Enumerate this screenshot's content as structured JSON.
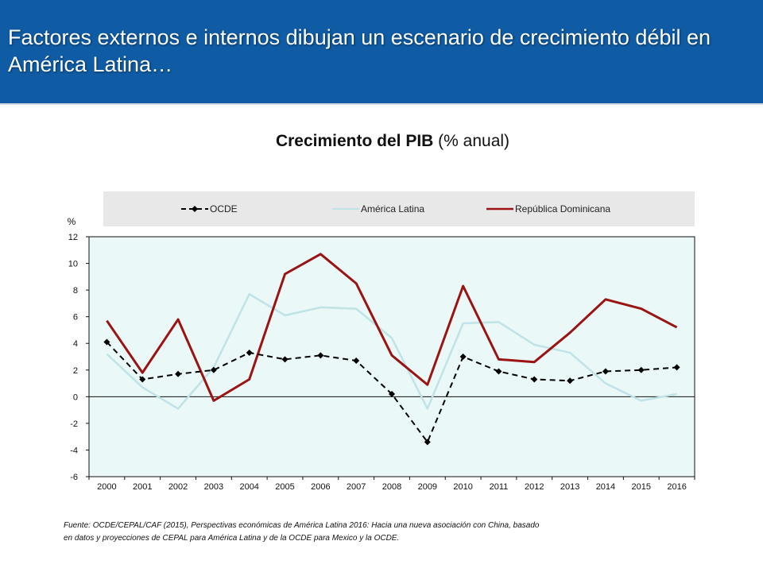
{
  "header": {
    "title": "Factores externos e internos dibujan un escenario de crecimiento débil en América Latina…"
  },
  "chart_title": {
    "bold": "Crecimiento del PIB",
    "rest": "(% anual)"
  },
  "source_note": [
    "Fuente: OCDE/CEPAL/CAF (2015), Perspectivas económicas de América Latina 2016: Hacia una nueva asociación con China, basado",
    "en datos y proyecciones de CEPAL para América Latina y de la OCDE para Mexico y la OCDE."
  ],
  "colors": {
    "header_bg": "#0f5ba4",
    "plot_bg": "#eaf8f8",
    "legend_bg": "#e8e8e8",
    "ocde": "#000000",
    "america_latina": "#bfe3e6",
    "republica_dominicana": "#9b1414"
  },
  "chart_data": {
    "type": "line",
    "title": "Crecimiento del PIB (% anual)",
    "ylabel": "%",
    "xlabel": "",
    "ylim": [
      -6,
      12
    ],
    "yticks": [
      12,
      10,
      8,
      6,
      4,
      2,
      0,
      -2,
      -4,
      -6
    ],
    "grid": false,
    "legend_position": "top",
    "x": [
      "2000",
      "2001",
      "2002",
      "2003",
      "2004",
      "2005",
      "2006",
      "2007",
      "2008",
      "2009",
      "2010",
      "2011",
      "2012",
      "2013",
      "2014",
      "2015",
      "2016"
    ],
    "series": [
      {
        "name": "OCDE",
        "style": "dashed-diamond",
        "values": [
          4.1,
          1.3,
          1.7,
          2.0,
          3.3,
          2.8,
          3.1,
          2.7,
          0.2,
          -3.4,
          3.0,
          1.9,
          1.3,
          1.2,
          1.9,
          2.0,
          2.2
        ]
      },
      {
        "name": "América Latina",
        "style": "solid",
        "values": [
          3.2,
          0.7,
          -0.9,
          2.2,
          7.7,
          6.1,
          6.7,
          6.6,
          4.4,
          -0.9,
          5.5,
          5.6,
          3.9,
          3.3,
          1.0,
          -0.3,
          0.2
        ]
      },
      {
        "name": "República Dominicana",
        "style": "solid-thick",
        "values": [
          5.7,
          1.8,
          5.8,
          -0.3,
          1.3,
          9.2,
          10.7,
          8.5,
          3.1,
          0.9,
          8.3,
          2.8,
          2.6,
          4.8,
          7.3,
          6.6,
          5.2
        ]
      }
    ]
  }
}
